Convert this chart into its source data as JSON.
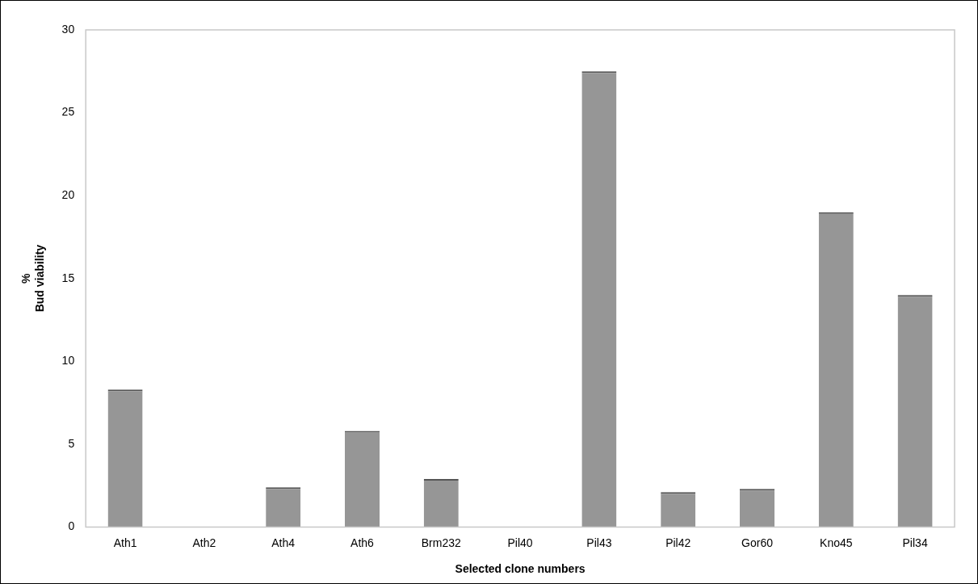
{
  "chart_data": {
    "type": "bar",
    "xlabel": "Selected clone numbers",
    "ylabel": "%\nBud viability",
    "categories": [
      "Ath1",
      "Ath2",
      "Ath4",
      "Ath6",
      "Brm232",
      "Pil40",
      "Pil43",
      "Pil42",
      "Gor60",
      "Kno45",
      "Pil34"
    ],
    "values": [
      8.3,
      0,
      2.4,
      5.8,
      2.9,
      0,
      27.5,
      2.1,
      2.3,
      19,
      14
    ],
    "color": "#969696",
    "ylim": [
      0,
      30
    ],
    "yticks": [
      0,
      5,
      10,
      15,
      20,
      25,
      30
    ],
    "grid": false,
    "legend": false
  }
}
